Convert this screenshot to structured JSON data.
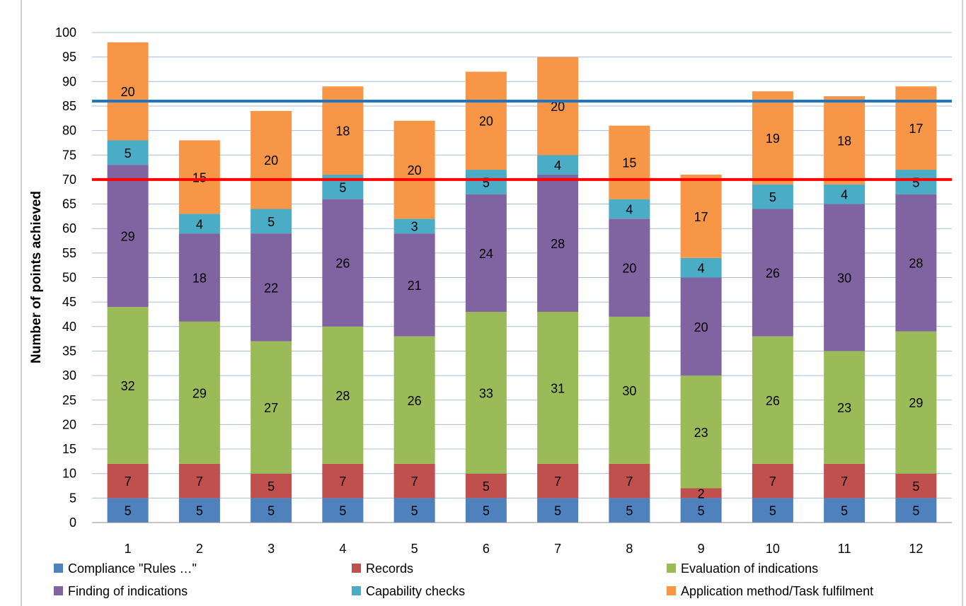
{
  "chart_data": {
    "type": "bar",
    "stacked": true,
    "title": "",
    "xlabel": "",
    "ylabel": "Number of points achieved",
    "ylim": [
      0,
      100
    ],
    "ytick_step": 5,
    "grid": true,
    "legend_placement": "bottom",
    "categories": [
      "1",
      "2",
      "3",
      "4",
      "5",
      "6",
      "7",
      "8",
      "9",
      "10",
      "11",
      "12"
    ],
    "series": [
      {
        "name": "Compliance \"Rules …\"",
        "color": "#4f81bd",
        "values": [
          5,
          5,
          5,
          5,
          5,
          5,
          5,
          5,
          5,
          5,
          5,
          5
        ]
      },
      {
        "name": "Records",
        "color": "#c0504d",
        "values": [
          7,
          7,
          5,
          7,
          7,
          5,
          7,
          7,
          2,
          7,
          7,
          5
        ]
      },
      {
        "name": "Evaluation of indications",
        "color": "#9bbb59",
        "values": [
          32,
          29,
          27,
          28,
          26,
          33,
          31,
          30,
          23,
          26,
          23,
          29
        ]
      },
      {
        "name": "Finding of indications",
        "color": "#8064a2",
        "values": [
          29,
          18,
          22,
          26,
          21,
          24,
          28,
          20,
          20,
          26,
          30,
          28
        ]
      },
      {
        "name": "Capability checks",
        "color": "#4bacc6",
        "values": [
          5,
          4,
          5,
          5,
          3,
          5,
          4,
          4,
          4,
          5,
          4,
          5
        ]
      },
      {
        "name": "Application method/Task fulfilment",
        "color": "#f79646",
        "values": [
          20,
          15,
          20,
          18,
          20,
          20,
          20,
          15,
          17,
          19,
          18,
          17
        ]
      }
    ],
    "reference_lines": [
      {
        "value": 86,
        "color": "#1f77c4"
      },
      {
        "value": 70,
        "color": "#ff0000"
      }
    ]
  }
}
